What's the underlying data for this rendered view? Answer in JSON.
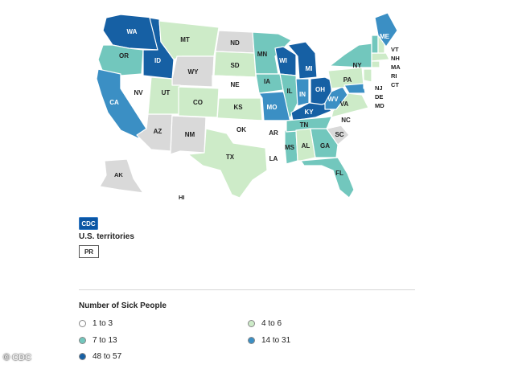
{
  "map": {
    "categories": [
      {
        "key": "c1",
        "label": "1 to 3",
        "color": "#ffffff"
      },
      {
        "key": "c2",
        "label": "4 to 6",
        "color": "#cdebc8"
      },
      {
        "key": "c3",
        "label": "7 to 13",
        "color": "#72c7bd"
      },
      {
        "key": "c4",
        "label": "14 to 31",
        "color": "#3b8fc4"
      },
      {
        "key": "c5",
        "label": "48 to 57",
        "color": "#1660a4"
      }
    ],
    "no_data_color": "#d9d9d9",
    "states": {
      "WA": "c5",
      "OR": "c3",
      "CA": "c4",
      "ID": "c5",
      "NV": "c1",
      "AZ": "none",
      "MT": "c2",
      "WY": "none",
      "UT": "c2",
      "CO": "c2",
      "NM": "none",
      "ND": "none",
      "SD": "c2",
      "NE": "c1",
      "KS": "c2",
      "OK": "c1",
      "TX": "c2",
      "MN": "c3",
      "IA": "c3",
      "MO": "c4",
      "AR": "c1",
      "LA": "c1",
      "WI": "c5",
      "IL": "c3",
      "MS": "c3",
      "MI": "c5",
      "IN": "c4",
      "KY": "c5",
      "TN": "c3",
      "AL": "c2",
      "OH": "c5",
      "GA": "c3",
      "FL": "c3",
      "SC": "none",
      "NC": "c1",
      "VA": "c2",
      "WV": "c4",
      "PA": "c2",
      "NY": "c3",
      "ME": "c4",
      "VT": "c3",
      "NH": "c2",
      "MA": "c2",
      "RI": "c1",
      "CT": "c2",
      "NJ": "c2",
      "DE": "c1",
      "MD": "c4",
      "AK": "none",
      "HI": "c1"
    }
  },
  "logo": {
    "text": "CDC"
  },
  "territories": {
    "title": "U.S. territories",
    "items": [
      "PR"
    ]
  },
  "legend": {
    "title": "Number of Sick People"
  },
  "credit": "© CDC"
}
